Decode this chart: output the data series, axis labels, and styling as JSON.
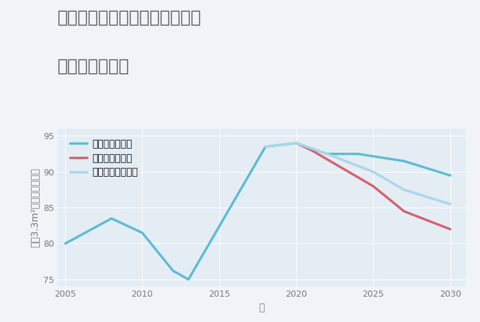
{
  "title_line1": "愛知県名古屋市昭和区西畑町の",
  "title_line2": "土地の価格推移",
  "xlabel": "年",
  "ylabel": "坪（3.3m²）単価（万円）",
  "ylim": [
    74,
    96
  ],
  "xlim": [
    2004.5,
    2031
  ],
  "yticks": [
    75,
    80,
    85,
    90,
    95
  ],
  "xticks": [
    2005,
    2010,
    2015,
    2020,
    2025,
    2030
  ],
  "bg_color": "#f0f4f8",
  "plot_bg_color": "#e4ecf4",
  "good_scenario": {
    "label": "グッドシナリオ",
    "color": "#5bbcd4",
    "x": [
      2005,
      2008,
      2010,
      2012,
      2013,
      2018,
      2020,
      2022,
      2024,
      2027,
      2030
    ],
    "y": [
      80.0,
      83.5,
      81.5,
      76.2,
      75.0,
      93.5,
      94.0,
      92.5,
      92.5,
      91.5,
      89.5
    ]
  },
  "bad_scenario": {
    "label": "バッドシナリオ",
    "color": "#d46070",
    "x": [
      2020,
      2021,
      2025,
      2027,
      2030
    ],
    "y": [
      94.0,
      93.0,
      88.0,
      84.5,
      82.0
    ]
  },
  "normal_scenario": {
    "label": "ノーマルシナリオ",
    "color": "#a8d8e8",
    "x": [
      2018,
      2020,
      2022,
      2025,
      2027,
      2030
    ],
    "y": [
      93.5,
      94.0,
      92.5,
      90.0,
      87.5,
      85.5
    ]
  },
  "legend_fontsize": 10,
  "title_fontsize": 18,
  "axis_fontsize": 10,
  "tick_fontsize": 9,
  "title_color": "#555555",
  "tick_color": "#777777",
  "grid_color": "#ffffff",
  "line_width": 2.5
}
